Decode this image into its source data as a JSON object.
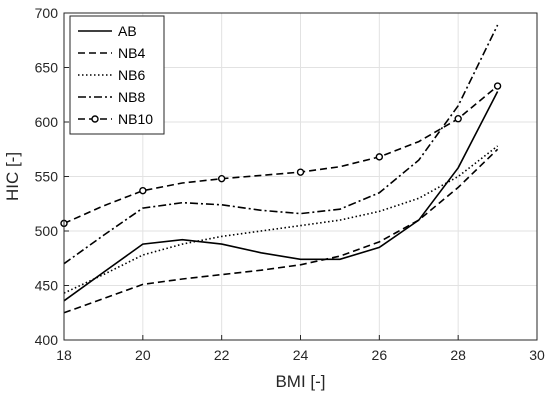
{
  "chart_data": {
    "type": "line",
    "xlabel": "BMI [-]",
    "ylabel": "HIC [-]",
    "xlim": [
      18,
      30
    ],
    "ylim": [
      400,
      700
    ],
    "xticks": [
      18,
      20,
      22,
      24,
      26,
      28,
      30
    ],
    "yticks": [
      400,
      450,
      500,
      550,
      600,
      650,
      700
    ],
    "grid": true,
    "legend_position": "top-left",
    "x": [
      18,
      19,
      20,
      21,
      22,
      23,
      24,
      25,
      26,
      27,
      28,
      29
    ],
    "series": [
      {
        "name": "AB",
        "style": "solid",
        "marker": "none",
        "color": "#000000",
        "values": [
          436,
          462,
          488,
          492,
          488,
          480,
          474,
          474,
          485,
          510,
          558,
          628
        ]
      },
      {
        "name": "NB4",
        "style": "dashed",
        "marker": "none",
        "color": "#000000",
        "values": [
          425,
          438,
          451,
          456,
          460,
          464,
          469,
          477,
          490,
          510,
          540,
          575
        ]
      },
      {
        "name": "NB6",
        "style": "dotted",
        "marker": "none",
        "color": "#000000",
        "values": [
          443,
          460,
          478,
          488,
          495,
          500,
          505,
          510,
          518,
          530,
          550,
          578
        ]
      },
      {
        "name": "NB8",
        "style": "dashdot",
        "marker": "none",
        "color": "#000000",
        "values": [
          470,
          496,
          521,
          526,
          524,
          519,
          516,
          520,
          535,
          565,
          615,
          689
        ]
      },
      {
        "name": "NB10",
        "style": "dashed",
        "marker": "circle",
        "color": "#000000",
        "values": [
          507,
          523,
          537,
          544,
          548,
          551,
          554,
          559,
          568,
          582,
          603,
          633
        ]
      }
    ]
  }
}
